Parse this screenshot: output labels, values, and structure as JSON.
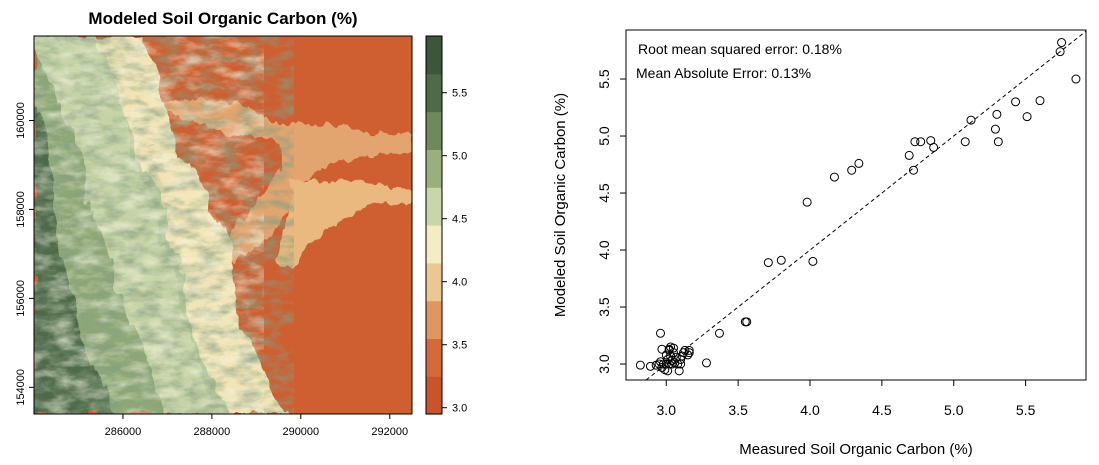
{
  "chart_data": [
    {
      "type": "heatmap",
      "title": "Modeled Soil Organic Carbon (%)",
      "xlabel": "",
      "ylabel": "",
      "x_ticks": [
        "286000",
        "288000",
        "290000",
        "292000"
      ],
      "y_ticks": [
        "154000",
        "156000",
        "158000",
        "160000"
      ],
      "xlim": [
        284000,
        292500
      ],
      "ylim": [
        153400,
        161900
      ],
      "grid": false,
      "colorbar": {
        "ticks": [
          "3.0",
          "3.5",
          "4.0",
          "4.5",
          "5.0",
          "5.5"
        ],
        "range": [
          2.95,
          5.95
        ],
        "colors": [
          "#c9542b",
          "#d36a38",
          "#e0975f",
          "#ebc793",
          "#f3ecc4",
          "#c8d6a9",
          "#99b07e",
          "#6e8a5d",
          "#4e6a47",
          "#3b5639"
        ]
      },
      "regions": [
        {
          "description_value": 5.6,
          "side": "west"
        },
        {
          "description_value": 4.7,
          "side": "transition"
        },
        {
          "description_value": 3.1,
          "side": "east"
        },
        {
          "description_value": 4.0,
          "side": "valley"
        }
      ]
    },
    {
      "type": "scatter",
      "title": "",
      "xlabel": "Measured Soil Organic Carbon (%)",
      "ylabel": "Modeled Soil Organic Carbon (%)",
      "xlim": [
        2.72,
        5.92
      ],
      "ylim": [
        2.86,
        5.93
      ],
      "x_ticks": [
        "3.0",
        "3.5",
        "4.0",
        "4.5",
        "5.0",
        "5.5"
      ],
      "y_ticks": [
        "3.0",
        "3.5",
        "4.0",
        "4.5",
        "5.0",
        "5.5"
      ],
      "grid": false,
      "reference_line": "1:1 dashed",
      "annotations": [
        "Root mean squared error: 0.18%",
        "Mean Absolute Error: 0.13%"
      ],
      "x": [
        2.82,
        2.89,
        2.93,
        2.95,
        2.96,
        2.97,
        2.98,
        2.99,
        3.0,
        3.0,
        3.01,
        3.01,
        3.02,
        3.02,
        3.03,
        3.03,
        3.04,
        3.04,
        3.05,
        3.06,
        3.07,
        3.08,
        3.09,
        3.1,
        3.11,
        3.12,
        3.13,
        3.15,
        3.16,
        3.16,
        2.96,
        2.97,
        3.02,
        3.05,
        3.1,
        3.28,
        3.37,
        3.55,
        3.56,
        3.71,
        3.8,
        3.98,
        4.02,
        4.17,
        4.29,
        4.34,
        4.69,
        4.72,
        4.73,
        4.77,
        4.84,
        4.86,
        5.08,
        5.12,
        5.29,
        5.3,
        5.31,
        5.43,
        5.51,
        5.6,
        5.74,
        5.75,
        5.85
      ],
      "y": [
        2.99,
        2.98,
        2.99,
        3.0,
        3.02,
        2.97,
        3.0,
        2.95,
        3.0,
        3.08,
        2.94,
        3.04,
        3.0,
        3.12,
        3.07,
        3.15,
        3.0,
        3.03,
        3.1,
        3.01,
        3.06,
        3.0,
        2.94,
        3.04,
        3.07,
        3.1,
        3.12,
        3.08,
        3.1,
        3.12,
        3.27,
        3.13,
        3.13,
        3.14,
        3.0,
        3.01,
        3.27,
        3.37,
        3.37,
        3.89,
        3.91,
        4.42,
        3.9,
        4.64,
        4.7,
        4.76,
        4.83,
        4.7,
        4.95,
        4.95,
        4.96,
        4.9,
        4.95,
        5.14,
        5.06,
        5.19,
        4.95,
        5.3,
        5.17,
        5.31,
        5.74,
        5.82,
        5.5
      ]
    }
  ]
}
